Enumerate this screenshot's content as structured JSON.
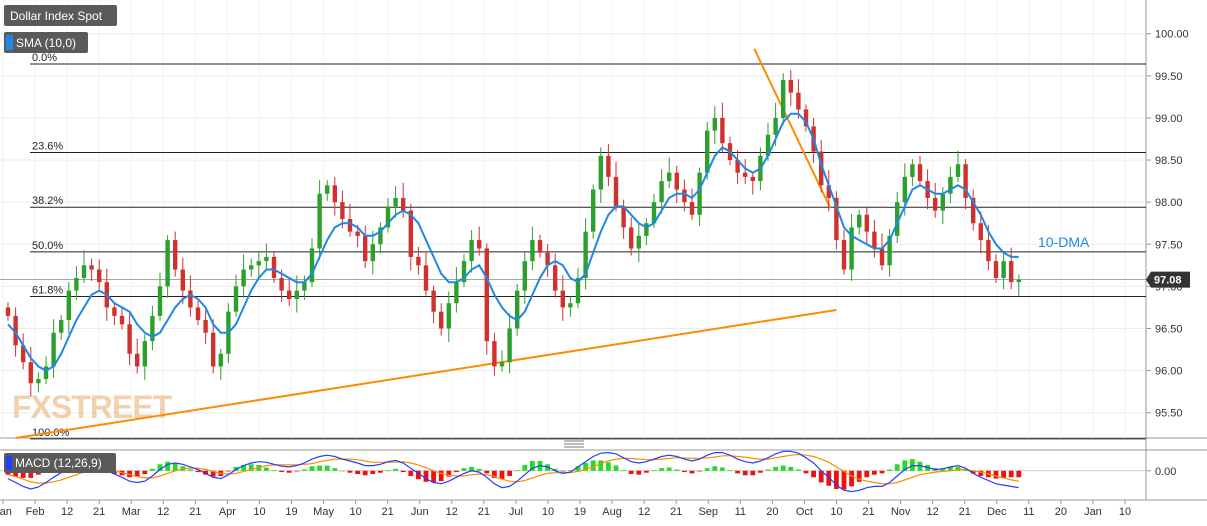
{
  "title": "Dollar Index Spot",
  "sma_label": "SMA (10,0)",
  "macd_label": "MACD (12,26,9)",
  "dma_label": "10-DMA",
  "last_price": "97.08",
  "watermark": "FXSTREET",
  "colors": {
    "up": "#2ca02c",
    "down": "#d0312d",
    "sma": "#1e88e5",
    "trend": "#ff8c00",
    "fib": "#222222",
    "price_box": "#333333",
    "label_box": "#5a5a5a",
    "macd_line": "#1e40ff",
    "signal_line": "#ff8c00",
    "hist_up": "#22dd22",
    "hist_down": "#ee1111"
  },
  "chart_data": {
    "type": "candlestick",
    "ylim": [
      95.2,
      100.4
    ],
    "y_ticks": [
      "100.00",
      "99.50",
      "99.00",
      "98.50",
      "98.00",
      "97.50",
      "97.00",
      "96.50",
      "96.00",
      "95.50"
    ],
    "y_tick_values": [
      100.0,
      99.5,
      99.0,
      98.5,
      98.0,
      97.5,
      97.0,
      96.5,
      96.0,
      95.5
    ],
    "x_ticks": [
      "Jan",
      "Feb",
      "12",
      "21",
      "Mar",
      "12",
      "21",
      "Apr",
      "10",
      "19",
      "May",
      "10",
      "21",
      "Jun",
      "12",
      "21",
      "Jul",
      "10",
      "19",
      "Aug",
      "12",
      "21",
      "Sep",
      "11",
      "20",
      "Oct",
      "10",
      "21",
      "Nov",
      "12",
      "21",
      "Dec",
      "11",
      "20",
      "Jan",
      "10"
    ],
    "fib_levels": [
      {
        "label": "0.0%",
        "value": 99.64
      },
      {
        "label": "23.6%",
        "value": 98.59
      },
      {
        "label": "38.2%",
        "value": 97.94
      },
      {
        "label": "50.0%",
        "value": 97.41
      },
      {
        "label": "61.8%",
        "value": 96.88
      },
      {
        "label": "100.0%",
        "value": 95.19
      }
    ],
    "trendlines": [
      {
        "name": "resistance",
        "from": [
          98.2,
          99.82
        ],
        "to": [
          108.2,
          97.93
        ]
      },
      {
        "name": "support",
        "from": [
          1.0,
          95.2
        ],
        "to": [
          109.0,
          96.72
        ]
      }
    ],
    "closes": [
      96.65,
      96.3,
      96.1,
      95.85,
      95.9,
      96.05,
      96.45,
      96.6,
      96.95,
      97.1,
      97.25,
      97.2,
      97.05,
      96.75,
      96.65,
      96.55,
      96.2,
      96.05,
      96.35,
      96.65,
      97.0,
      97.55,
      97.2,
      96.95,
      96.75,
      96.6,
      96.45,
      96.05,
      96.2,
      96.7,
      97.0,
      97.2,
      97.25,
      97.3,
      97.35,
      97.1,
      96.95,
      96.85,
      96.95,
      97.05,
      97.45,
      98.1,
      98.2,
      98.0,
      97.8,
      97.65,
      97.6,
      97.3,
      97.5,
      97.7,
      97.95,
      98.05,
      97.9,
      97.35,
      97.25,
      96.95,
      96.7,
      96.5,
      96.8,
      97.05,
      97.3,
      97.55,
      97.45,
      96.35,
      96.05,
      96.1,
      96.5,
      96.95,
      97.3,
      97.55,
      97.4,
      97.25,
      96.95,
      96.75,
      96.8,
      97.1,
      97.65,
      98.15,
      98.55,
      98.3,
      97.95,
      97.7,
      97.45,
      97.6,
      97.75,
      98.0,
      98.25,
      98.35,
      98.15,
      98.0,
      97.85,
      98.35,
      98.85,
      99.0,
      98.7,
      98.5,
      98.35,
      98.3,
      98.25,
      98.55,
      98.8,
      99.0,
      99.45,
      99.3,
      99.1,
      98.9,
      98.6,
      98.2,
      98.05,
      97.55,
      97.2,
      97.7,
      97.85,
      97.65,
      97.45,
      97.25,
      97.6,
      98.0,
      98.3,
      98.45,
      98.25,
      98.05,
      97.9,
      98.1,
      98.3,
      98.45,
      98.05,
      97.75,
      97.55,
      97.3,
      97.1,
      97.3,
      97.05,
      97.08
    ],
    "series": [
      {
        "name": "10-DMA",
        "values": [
          96.55,
          96.45,
          96.3,
          96.15,
          96.05,
          96.0,
          96.05,
          96.2,
          96.4,
          96.6,
          96.75,
          96.9,
          96.95,
          96.9,
          96.8,
          96.75,
          96.7,
          96.55,
          96.45,
          96.4,
          96.45,
          96.6,
          96.75,
          96.85,
          96.9,
          96.85,
          96.75,
          96.55,
          96.45,
          96.45,
          96.55,
          96.75,
          96.95,
          97.1,
          97.2,
          97.2,
          97.15,
          97.1,
          97.05,
          97.05,
          97.15,
          97.35,
          97.55,
          97.7,
          97.75,
          97.75,
          97.7,
          97.6,
          97.6,
          97.65,
          97.75,
          97.85,
          97.9,
          97.85,
          97.75,
          97.55,
          97.35,
          97.15,
          97.05,
          97.05,
          97.1,
          97.2,
          97.25,
          97.1,
          96.9,
          96.75,
          96.65,
          96.6,
          96.7,
          96.9,
          97.1,
          97.25,
          97.3,
          97.25,
          97.1,
          97.05,
          97.15,
          97.4,
          97.65,
          97.85,
          97.95,
          97.95,
          97.85,
          97.75,
          97.7,
          97.75,
          97.9,
          98.05,
          98.1,
          98.1,
          98.05,
          98.15,
          98.35,
          98.55,
          98.65,
          98.6,
          98.5,
          98.4,
          98.35,
          98.4,
          98.55,
          98.75,
          98.95,
          99.05,
          99.05,
          98.95,
          98.75,
          98.45,
          98.2,
          97.95,
          97.7,
          97.6,
          97.55,
          97.5,
          97.45,
          97.45,
          97.55,
          97.75,
          97.95,
          98.15,
          98.2,
          98.15,
          98.1,
          98.1,
          98.15,
          98.2,
          98.15,
          98.0,
          97.85,
          97.65,
          97.5,
          97.4,
          97.35,
          97.35
        ]
      }
    ],
    "macd": {
      "ylim": [
        -0.45,
        0.32
      ],
      "y_ticks": [
        "0.00"
      ],
      "macd_line": [
        -0.12,
        -0.18,
        -0.24,
        -0.28,
        -0.25,
        -0.18,
        -0.1,
        -0.03,
        0.04,
        0.08,
        0.1,
        0.08,
        0.04,
        0.0,
        -0.05,
        -0.1,
        -0.16,
        -0.18,
        -0.16,
        -0.08,
        0.02,
        0.1,
        0.12,
        0.1,
        0.06,
        0.02,
        -0.04,
        -0.1,
        -0.12,
        -0.06,
        0.02,
        0.08,
        0.12,
        0.14,
        0.13,
        0.1,
        0.07,
        0.06,
        0.08,
        0.12,
        0.18,
        0.22,
        0.24,
        0.22,
        0.18,
        0.15,
        0.12,
        0.08,
        0.08,
        0.1,
        0.14,
        0.16,
        0.12,
        0.04,
        -0.04,
        -0.12,
        -0.18,
        -0.2,
        -0.16,
        -0.1,
        -0.04,
        0.0,
        -0.02,
        -0.1,
        -0.2,
        -0.26,
        -0.24,
        -0.16,
        -0.06,
        0.04,
        0.08,
        0.06,
        0.0,
        -0.04,
        -0.02,
        0.06,
        0.14,
        0.22,
        0.27,
        0.28,
        0.26,
        0.2,
        0.14,
        0.12,
        0.14,
        0.18,
        0.22,
        0.24,
        0.22,
        0.18,
        0.15,
        0.18,
        0.24,
        0.28,
        0.28,
        0.24,
        0.18,
        0.14,
        0.12,
        0.15,
        0.2,
        0.26,
        0.3,
        0.3,
        0.27,
        0.2,
        0.12,
        0.0,
        -0.1,
        -0.22,
        -0.3,
        -0.32,
        -0.3,
        -0.26,
        -0.24,
        -0.24,
        -0.18,
        -0.08,
        0.02,
        0.08,
        0.08,
        0.05,
        0.02,
        0.03,
        0.06,
        0.08,
        0.04,
        -0.04,
        -0.1,
        -0.15,
        -0.2,
        -0.22,
        -0.24,
        -0.26
      ],
      "signal_line": [
        -0.06,
        -0.09,
        -0.13,
        -0.17,
        -0.19,
        -0.19,
        -0.17,
        -0.14,
        -0.1,
        -0.06,
        -0.02,
        0.0,
        0.02,
        0.01,
        0.0,
        -0.03,
        -0.06,
        -0.09,
        -0.11,
        -0.11,
        -0.08,
        -0.04,
        0.0,
        0.03,
        0.04,
        0.04,
        0.02,
        -0.01,
        -0.04,
        -0.05,
        -0.04,
        -0.01,
        0.02,
        0.05,
        0.08,
        0.09,
        0.09,
        0.09,
        0.09,
        0.1,
        0.11,
        0.14,
        0.16,
        0.18,
        0.18,
        0.18,
        0.17,
        0.15,
        0.13,
        0.13,
        0.13,
        0.13,
        0.14,
        0.12,
        0.09,
        0.05,
        0.0,
        -0.04,
        -0.07,
        -0.08,
        -0.08,
        -0.06,
        -0.05,
        -0.06,
        -0.09,
        -0.13,
        -0.16,
        -0.17,
        -0.15,
        -0.11,
        -0.07,
        -0.04,
        -0.03,
        -0.03,
        -0.03,
        -0.01,
        0.02,
        0.06,
        0.11,
        0.15,
        0.18,
        0.19,
        0.19,
        0.18,
        0.17,
        0.17,
        0.18,
        0.19,
        0.2,
        0.2,
        0.19,
        0.19,
        0.2,
        0.21,
        0.23,
        0.23,
        0.22,
        0.21,
        0.19,
        0.18,
        0.18,
        0.2,
        0.22,
        0.24,
        0.25,
        0.24,
        0.22,
        0.18,
        0.13,
        0.06,
        -0.01,
        -0.08,
        -0.13,
        -0.16,
        -0.18,
        -0.2,
        -0.2,
        -0.18,
        -0.14,
        -0.1,
        -0.06,
        -0.04,
        -0.02,
        -0.01,
        0.0,
        0.02,
        0.02,
        0.0,
        -0.02,
        -0.05,
        -0.08,
        -0.11,
        -0.14,
        -0.16
      ]
    }
  }
}
